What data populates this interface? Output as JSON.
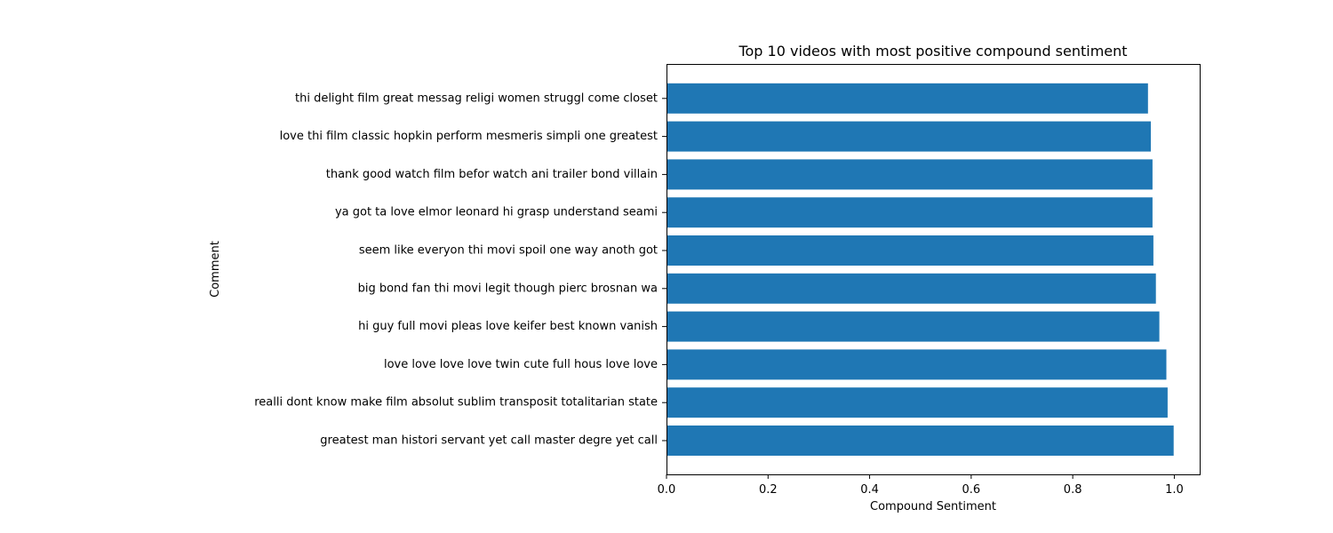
{
  "chart_data": {
    "type": "bar",
    "orientation": "horizontal",
    "title": "Top 10 videos with most positive compound sentiment",
    "xlabel": "Compound Sentiment",
    "ylabel": "Comment",
    "xlim": [
      0.0,
      1.05
    ],
    "xticks": [
      "0.0",
      "0.2",
      "0.4",
      "0.6",
      "0.8",
      "1.0"
    ],
    "grid": false,
    "bar_color": "#1f77b4",
    "categories": [
      "greatest man histori servant yet call master degre yet call",
      "realli dont know make film absolut sublim transposit totalitarian state",
      "love love love love twin cute full hous love love",
      "hi guy full movi pleas love keifer best known vanish",
      "big bond fan thi movi legit though pierc brosnan wa",
      "seem like everyon thi movi spoil one way anoth got",
      "ya got ta love elmor leonard hi grasp understand seami",
      "thank good watch film befor watch ani trailer bond villain",
      "love thi film classic hopkin perform mesmeris simpli one greatest",
      "thi delight film great messag religi women struggl come closet"
    ],
    "values": [
      0.9987,
      0.9868,
      0.9844,
      0.9706,
      0.9637,
      0.9589,
      0.9571,
      0.9571,
      0.9537,
      0.9481
    ]
  }
}
